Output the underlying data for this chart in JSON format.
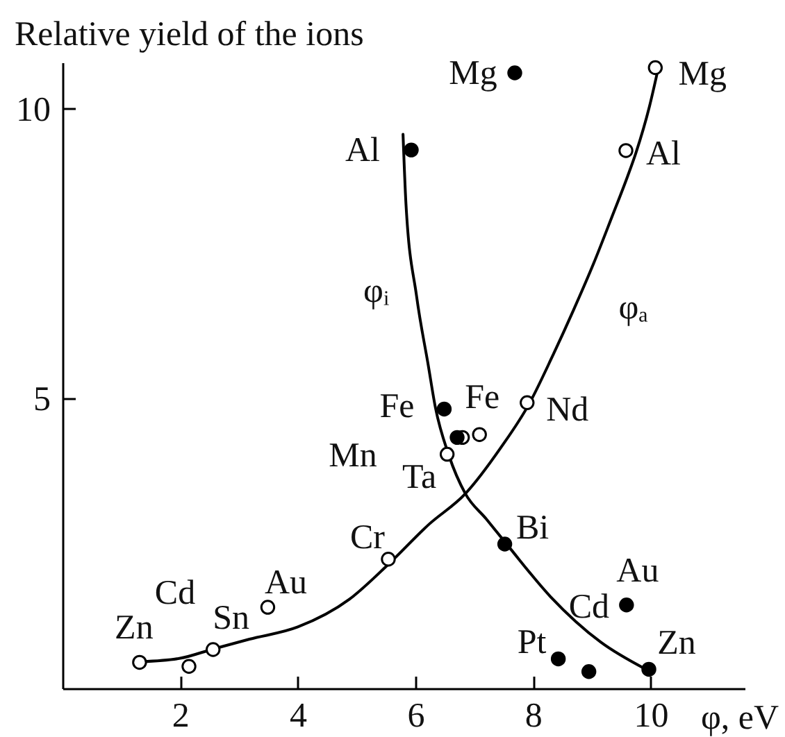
{
  "chart_data": {
    "type": "scatter",
    "xlabel": "φ, eV",
    "ylabel": "Relative yield of the ions",
    "xlim": [
      0,
      11.6
    ],
    "ylim": [
      0,
      10.8
    ],
    "xticks": [
      2,
      4,
      6,
      8,
      10
    ],
    "yticks": [
      5,
      10
    ],
    "series": [
      {
        "type": "line",
        "color": "#000000",
        "x": [
          5.79,
          5.84,
          6.02,
          6.22,
          6.34,
          6.57,
          6.85,
          7.2,
          7.56,
          8.3,
          9.15,
          9.92
        ],
        "values": [
          9.56,
          8.36,
          6.77,
          5.57,
          4.85,
          4.02,
          3.36,
          2.93,
          2.48,
          1.58,
          0.8,
          0.33
        ]
      },
      {
        "type": "line",
        "color": "#000000",
        "x": [
          1.34,
          2.0,
          2.56,
          3.18,
          4.0,
          4.88,
          5.54,
          6.23,
          6.85,
          7.45,
          7.94,
          8.33,
          8.69,
          9.03,
          9.34,
          9.61,
          9.75,
          9.98,
          10.13
        ],
        "values": [
          0.46,
          0.52,
          0.68,
          0.85,
          1.06,
          1.54,
          2.14,
          2.83,
          3.36,
          4.15,
          4.92,
          5.73,
          6.53,
          7.33,
          8.13,
          8.84,
          9.24,
          10.04,
          10.7
        ]
      },
      {
        "color": "#ffffff",
        "marker": "circle",
        "x": [
          10.08,
          9.58,
          7.9,
          7.09,
          6.8,
          6.54,
          5.54,
          3.49,
          2.56,
          2.15,
          1.31
        ],
        "values": [
          10.71,
          9.28,
          4.93,
          4.38,
          4.33,
          4.04,
          2.23,
          1.4,
          0.67,
          0.38,
          0.45
        ]
      },
      {
        "color": "#000000",
        "marker": "circle",
        "x": [
          7.69,
          5.93,
          6.49,
          6.71,
          7.52,
          9.59,
          8.43,
          8.95,
          9.97
        ],
        "values": [
          10.62,
          9.29,
          4.82,
          4.33,
          2.49,
          1.44,
          0.51,
          0.29,
          0.33
        ]
      }
    ],
    "annotations": [
      {
        "text": "Mg",
        "x": 7.69,
        "y": 10.62
      },
      {
        "text": "Mg",
        "x": 10.08,
        "y": 10.71
      },
      {
        "text": "Al",
        "x": 5.93,
        "y": 9.29
      },
      {
        "text": "Al",
        "x": 9.58,
        "y": 9.28
      },
      {
        "text": "φᵢ",
        "x": 6.02,
        "y": 6.77
      },
      {
        "text": "φₐ",
        "x": 8.69,
        "y": 6.53
      },
      {
        "text": "Fe",
        "x": 6.49,
        "y": 4.82
      },
      {
        "text": "Fe",
        "x": 7.09,
        "y": 4.38
      },
      {
        "text": "Nd",
        "x": 7.9,
        "y": 4.93
      },
      {
        "text": "Mn",
        "x": 6.71,
        "y": 4.33
      },
      {
        "text": "Ta",
        "x": 6.54,
        "y": 4.04
      },
      {
        "text": "Bi",
        "x": 7.52,
        "y": 2.49
      },
      {
        "text": "Au",
        "x": 9.59,
        "y": 1.44
      },
      {
        "text": "Cd",
        "x": 9.59,
        "y": 1.44
      },
      {
        "text": "Pt",
        "x": 8.43,
        "y": 0.51
      },
      {
        "text": "Zn",
        "x": 9.97,
        "y": 0.33
      },
      {
        "text": "Cr",
        "x": 5.54,
        "y": 2.23
      },
      {
        "text": "Au",
        "x": 3.49,
        "y": 1.4
      },
      {
        "text": "Cd",
        "x": 2.15,
        "y": 0.38
      },
      {
        "text": "Sn",
        "x": 2.56,
        "y": 0.67
      },
      {
        "text": "Zn",
        "x": 1.31,
        "y": 0.45
      }
    ]
  }
}
